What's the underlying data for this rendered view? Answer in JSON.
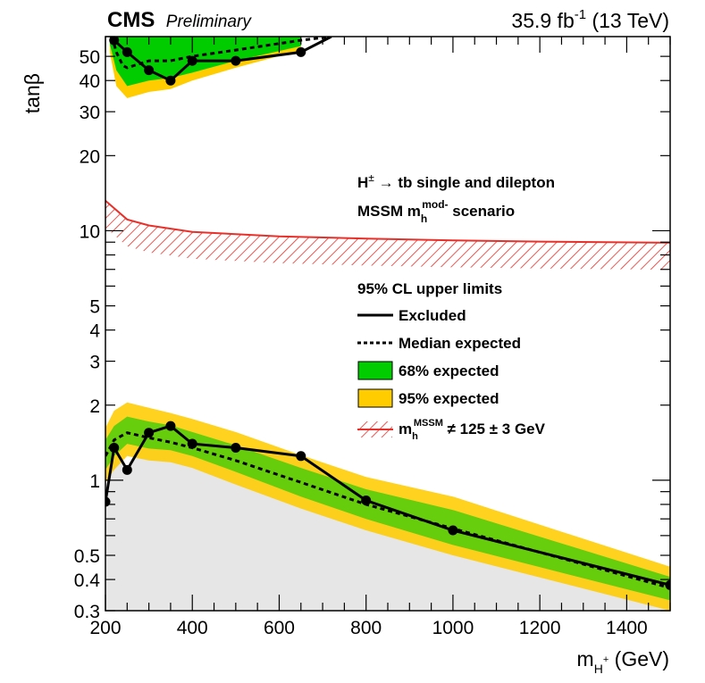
{
  "header": {
    "experiment": "CMS",
    "status": "Preliminary",
    "lumi_value": "35.9 fb",
    "lumi_exp": "-1",
    "energy": " (13 TeV)"
  },
  "annotation": {
    "line1_main": "H",
    "line1_sup": "±",
    "line1_arrow": " → ",
    "line1_rest": "tb single and dilepton",
    "line2_main": "MSSM m",
    "line2_sub": "h",
    "line2_sup": "mod-",
    "line2_rest": " scenario"
  },
  "legend": {
    "header": "95% CL upper limits",
    "excluded": "Excluded",
    "median": "Median expected",
    "band68": "68% expected",
    "band95": "95% expected",
    "mh_main": "m",
    "mh_sub": "h",
    "mh_sup": "MSSM",
    "mh_rest": " ≠ 125 ± 3 GeV"
  },
  "colors": {
    "excluded_fill": "#e6e6e6",
    "band68": "#00cc00",
    "band95": "#ffcc00",
    "hatch": "#e8302a",
    "line": "#000000"
  },
  "chart_data": {
    "type": "line",
    "title": "",
    "xlabel_main": "m",
    "xlabel_sub": "H",
    "xlabel_sup": "+",
    "xlabel_unit": " (GeV)",
    "ylabel": "tanβ",
    "xlim": [
      200,
      1500
    ],
    "ylim": [
      0.3,
      60
    ],
    "yscale": "log",
    "x_ticks": [
      200,
      400,
      600,
      800,
      1000,
      1200,
      1400
    ],
    "y_ticks": [
      0.3,
      0.4,
      0.5,
      1,
      2,
      3,
      4,
      5,
      10,
      20,
      30,
      40,
      50
    ],
    "y_tick_labels": [
      "0.3",
      "0.4",
      "0.5",
      "1",
      "2",
      "3",
      "4",
      "5",
      "10",
      "20",
      "30",
      "40",
      "50"
    ],
    "low": {
      "x": [
        200,
        220,
        250,
        300,
        350,
        400,
        500,
        650,
        800,
        1000,
        1500
      ],
      "observed": [
        0.82,
        1.35,
        1.1,
        1.55,
        1.65,
        1.4,
        1.35,
        1.25,
        0.83,
        0.63,
        0.38
      ],
      "expected": [
        1.25,
        1.45,
        1.55,
        1.48,
        1.42,
        1.35,
        1.2,
        0.98,
        0.8,
        0.64,
        0.37
      ],
      "band68_low": [
        1.1,
        1.25,
        1.4,
        1.34,
        1.32,
        1.25,
        1.08,
        0.86,
        0.7,
        0.55,
        0.33
      ],
      "band68_high": [
        1.45,
        1.65,
        1.8,
        1.72,
        1.66,
        1.56,
        1.38,
        1.12,
        0.92,
        0.76,
        0.41
      ],
      "band95_low": [
        0.98,
        1.1,
        1.25,
        1.2,
        1.18,
        1.12,
        0.96,
        0.77,
        0.63,
        0.5,
        0.3
      ],
      "band95_high": [
        1.62,
        1.9,
        2.05,
        1.95,
        1.86,
        1.76,
        1.56,
        1.26,
        1.03,
        0.86,
        0.45
      ]
    },
    "high": {
      "x": [
        220,
        250,
        300,
        350,
        400,
        500,
        650,
        720
      ],
      "observed": [
        58,
        52,
        44,
        40,
        48,
        48,
        52,
        60
      ],
      "x_expected": [
        215,
        225,
        240,
        250,
        300,
        350,
        400,
        500,
        650,
        720
      ],
      "expected": [
        60,
        52,
        46,
        45,
        48,
        48,
        50,
        53,
        58,
        60
      ],
      "x_band": [
        210,
        225,
        250,
        300,
        350,
        400,
        500,
        650
      ],
      "band68_low": [
        56,
        44,
        38,
        40,
        41,
        43,
        48,
        55
      ],
      "band95_low": [
        52,
        38,
        34,
        36,
        37,
        40,
        45,
        53
      ]
    },
    "hatch_curve": {
      "x": [
        200,
        250,
        300,
        400,
        600,
        800,
        1000,
        1200,
        1500
      ],
      "y": [
        13.2,
        11.1,
        10.5,
        9.9,
        9.5,
        9.3,
        9.15,
        9.05,
        8.95
      ]
    }
  }
}
